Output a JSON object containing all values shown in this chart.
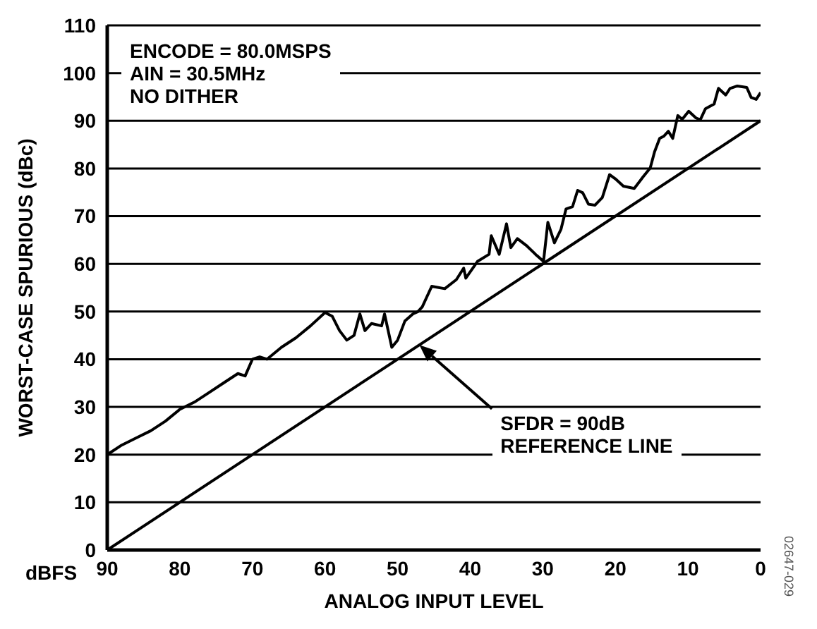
{
  "chart_data": {
    "type": "line",
    "xlabel": "ANALOG INPUT LEVEL",
    "ylabel": "WORST-CASE SPURIOUS (dBc)",
    "xlim": [
      90,
      0
    ],
    "xticks": [
      90,
      80,
      70,
      60,
      50,
      40,
      30,
      20,
      10,
      0
    ],
    "ylim": [
      0,
      110
    ],
    "yticks": [
      0,
      10,
      20,
      30,
      40,
      50,
      60,
      70,
      80,
      90,
      100,
      110
    ],
    "grid": "y",
    "marker": "none",
    "line_style": "solid",
    "series": [
      {
        "color": "#000000",
        "x": [
          90,
          88,
          86,
          84,
          82,
          80,
          78,
          76,
          74,
          72,
          71,
          70,
          69,
          68,
          66,
          64,
          62,
          60,
          59,
          58,
          57,
          56,
          55.2,
          54.5,
          53.6,
          52.2,
          51.8,
          50.8,
          50,
          49,
          47.9,
          47.2,
          46.6,
          45.3,
          43.5,
          41.9,
          40.9,
          40.6,
          39,
          37.4,
          37.1,
          36,
          35,
          34.4,
          33.5,
          32.3,
          31,
          29.9,
          29.3,
          28.4,
          27.5,
          26.8,
          25.9,
          25.2,
          24.5,
          23.7,
          22.8,
          21.8,
          20.8,
          19.9,
          18.9,
          17.4,
          16.2,
          15.2,
          14.6,
          13.9,
          13.3,
          12.7,
          12.1,
          11.4,
          10.8,
          9.9,
          8.9,
          8.3,
          7.6,
          6.4,
          5.8,
          4.8,
          4.2,
          3.2,
          1.9,
          1.3,
          0.6,
          0
        ],
        "values": [
          20,
          22,
          23.5,
          25,
          27,
          29.5,
          31,
          33,
          35,
          37,
          36.5,
          40,
          40.5,
          40,
          42.5,
          44.5,
          47,
          49.8,
          49,
          46,
          44,
          45,
          49.5,
          46,
          47.5,
          47,
          49.5,
          42.5,
          44,
          48,
          49.5,
          50,
          51,
          55.3,
          54.8,
          56.7,
          59.1,
          57,
          60.5,
          62,
          65.9,
          62,
          68.4,
          63.4,
          65.3,
          63.9,
          62,
          60.5,
          68.7,
          64.4,
          67.2,
          71.5,
          72,
          75.4,
          74.9,
          72.5,
          72.3,
          73.9,
          78.7,
          77.7,
          76.3,
          75.8,
          78.2,
          80.1,
          83.5,
          86.3,
          86.8,
          87.8,
          86.3,
          91.1,
          90.3,
          92,
          90.6,
          90.2,
          92.5,
          93.5,
          96.8,
          95.4,
          96.8,
          97.3,
          97,
          94.9,
          94.5,
          95.9
        ]
      },
      {
        "color": "#000000",
        "x": [
          90,
          0
        ],
        "values": [
          0,
          90
        ]
      }
    ],
    "annotations": [
      "ENCODE = 80.0MSPS\nAIN = 30.5MHz\nNO DITHER",
      "SFDR = 90dB\nREFERENCE LINE",
      "dBFS",
      "02647-029"
    ]
  }
}
